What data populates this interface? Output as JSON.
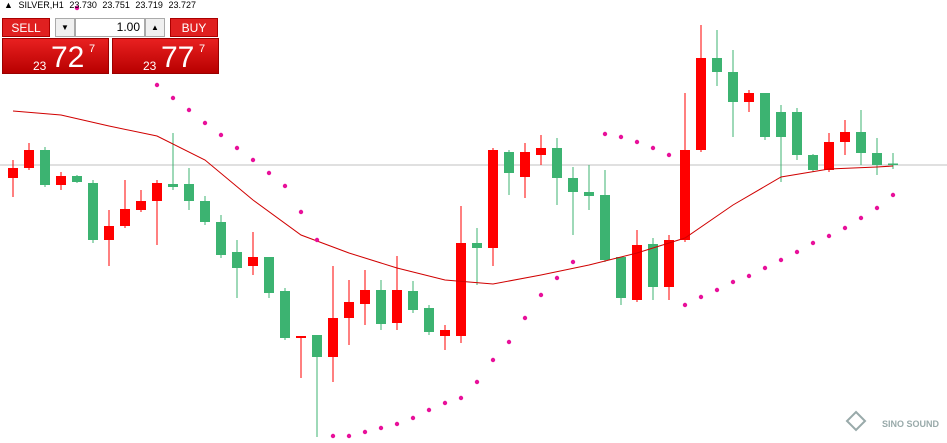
{
  "header": {
    "symbol": "SILVER,H1",
    "ohlc": [
      "23.730",
      "23.751",
      "23.719",
      "23.727"
    ]
  },
  "panel": {
    "sell": "SELL",
    "buy": "BUY",
    "lots": "1.00",
    "bid": {
      "big": "23",
      "main": "72",
      "small": "7"
    },
    "ask": {
      "big": "23",
      "main": "77",
      "small": "7"
    }
  },
  "watermark": "SINO SOUND",
  "chart_data": {
    "type": "candlestick",
    "xlim": [
      -0.8125,
      58.375
    ],
    "ylim": [
      23.171,
      24.057
    ],
    "up_color": "#ff0000",
    "down_color": "#3cb371",
    "ma_color": "#d00000",
    "sar_color": "#e8109a",
    "open": [
      23.701,
      23.721,
      23.757,
      23.687,
      23.705,
      23.691,
      23.577,
      23.605,
      23.637,
      23.655,
      23.689,
      23.689,
      23.655,
      23.613,
      23.553,
      23.525,
      23.543,
      23.475,
      23.381,
      23.387,
      23.343,
      23.421,
      23.449,
      23.477,
      23.411,
      23.475,
      23.441,
      23.385,
      23.385,
      23.571,
      23.561,
      23.753,
      23.703,
      23.747,
      23.761,
      23.701,
      23.673,
      23.667,
      23.543,
      23.457,
      23.569,
      23.483,
      23.577,
      23.757,
      23.941,
      23.913,
      23.853,
      23.871,
      23.833,
      23.833,
      23.747,
      23.717,
      23.773,
      23.793,
      23.751,
      23.73
    ],
    "high": [
      23.737,
      23.771,
      23.763,
      23.713,
      23.707,
      23.697,
      23.637,
      23.697,
      23.677,
      23.697,
      23.791,
      23.721,
      23.665,
      23.627,
      23.577,
      23.593,
      23.543,
      23.481,
      23.385,
      23.387,
      23.525,
      23.497,
      23.517,
      23.497,
      23.545,
      23.495,
      23.447,
      23.407,
      23.645,
      23.601,
      23.761,
      23.757,
      23.771,
      23.787,
      23.781,
      23.723,
      23.727,
      23.717,
      23.543,
      23.597,
      23.581,
      23.587,
      23.871,
      24.007,
      23.997,
      23.957,
      23.877,
      23.871,
      23.847,
      23.841,
      23.749,
      23.791,
      23.817,
      23.837,
      23.781,
      23.751
    ],
    "low": [
      23.663,
      23.717,
      23.683,
      23.677,
      23.691,
      23.571,
      23.525,
      23.601,
      23.633,
      23.567,
      23.677,
      23.637,
      23.607,
      23.541,
      23.461,
      23.507,
      23.461,
      23.377,
      23.301,
      23.183,
      23.293,
      23.367,
      23.407,
      23.397,
      23.397,
      23.431,
      23.387,
      23.357,
      23.371,
      23.487,
      23.525,
      23.667,
      23.661,
      23.727,
      23.647,
      23.587,
      23.637,
      23.533,
      23.447,
      23.453,
      23.457,
      23.457,
      23.573,
      23.753,
      23.885,
      23.783,
      23.833,
      23.777,
      23.693,
      23.737,
      23.713,
      23.713,
      23.747,
      23.727,
      23.707,
      23.719
    ],
    "close": [
      23.721,
      23.757,
      23.687,
      23.705,
      23.693,
      23.577,
      23.605,
      23.639,
      23.655,
      23.691,
      23.683,
      23.655,
      23.613,
      23.547,
      23.521,
      23.543,
      23.471,
      23.381,
      23.385,
      23.343,
      23.421,
      23.453,
      23.477,
      23.409,
      23.477,
      23.437,
      23.393,
      23.397,
      23.571,
      23.561,
      23.757,
      23.711,
      23.753,
      23.761,
      23.701,
      23.673,
      23.665,
      23.537,
      23.461,
      23.567,
      23.483,
      23.577,
      23.757,
      23.941,
      23.913,
      23.853,
      23.871,
      23.783,
      23.783,
      23.747,
      23.717,
      23.773,
      23.793,
      23.751,
      23.727,
      23.727
    ],
    "ma": {
      "x": [
        0,
        3,
        6,
        9,
        12,
        15,
        18,
        21,
        24,
        27,
        30,
        33,
        36,
        39,
        42,
        45,
        48,
        51,
        54,
        55
      ],
      "values": [
        23.835,
        23.827,
        23.805,
        23.785,
        23.737,
        23.657,
        23.587,
        23.551,
        23.521,
        23.497,
        23.489,
        23.507,
        23.527,
        23.551,
        23.581,
        23.647,
        23.703,
        23.719,
        23.723,
        23.725
      ]
    },
    "sar": {
      "x": [
        4,
        9,
        10,
        11,
        12,
        13,
        14,
        15,
        16,
        17,
        18,
        19,
        20,
        21,
        22,
        23,
        24,
        25,
        26,
        27,
        28,
        29,
        30,
        31,
        32,
        33,
        34,
        35,
        37,
        38,
        39,
        40,
        41,
        42,
        43,
        44,
        45,
        46,
        47,
        48,
        49,
        50,
        51,
        52,
        53,
        54,
        55
      ],
      "values": [
        24.041,
        23.887,
        23.861,
        23.837,
        23.811,
        23.787,
        23.761,
        23.737,
        23.711,
        23.685,
        23.633,
        23.577,
        23.185,
        23.185,
        23.193,
        23.201,
        23.209,
        23.221,
        23.237,
        23.251,
        23.261,
        23.293,
        23.337,
        23.373,
        23.421,
        23.467,
        23.501,
        23.533,
        23.789,
        23.783,
        23.773,
        23.761,
        23.747,
        23.447,
        23.463,
        23.477,
        23.493,
        23.505,
        23.521,
        23.537,
        23.553,
        23.571,
        23.585,
        23.601,
        23.621,
        23.641,
        23.667
      ]
    }
  }
}
